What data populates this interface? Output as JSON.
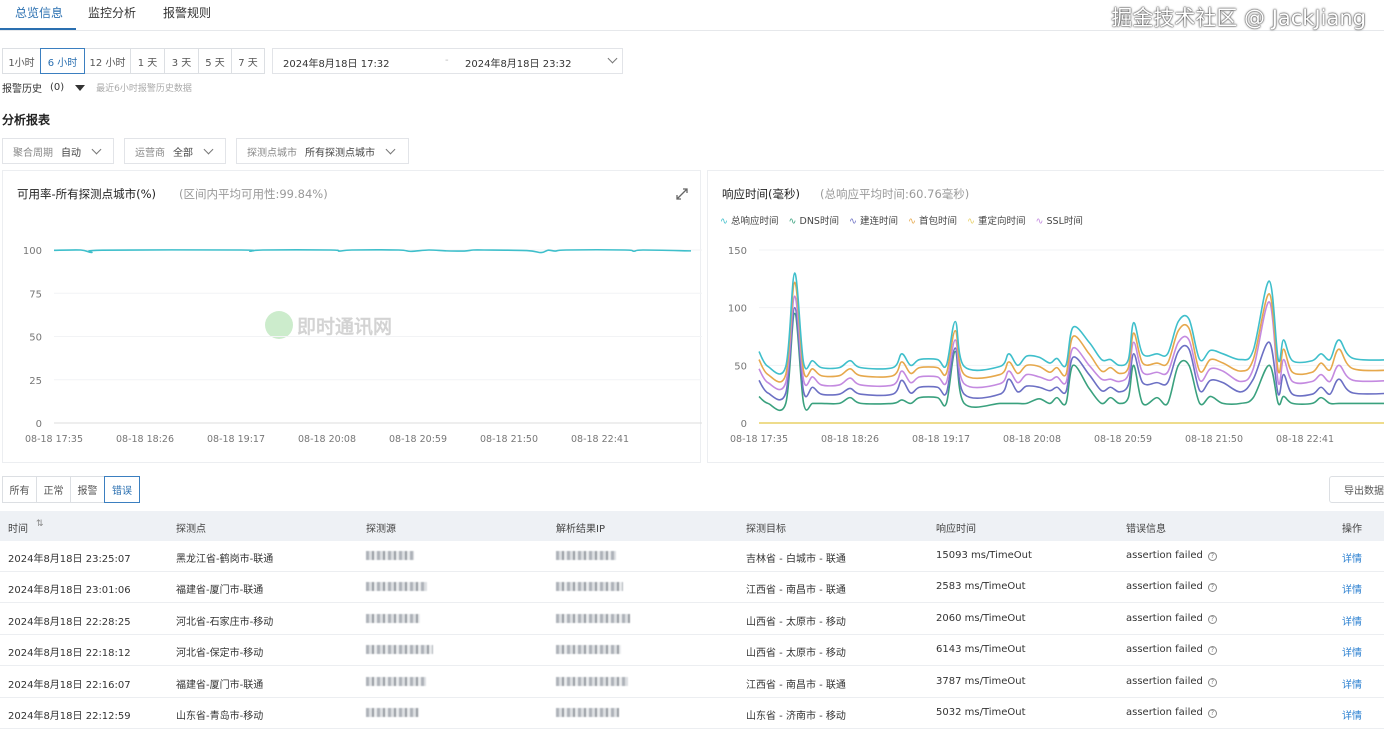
{
  "tabs": [
    {
      "label": "总览信息",
      "active": true
    },
    {
      "label": "监控分析"
    },
    {
      "label": "报警规则"
    }
  ],
  "time_ranges": [
    {
      "label": "1小时"
    },
    {
      "label": "6 小时",
      "selected": true
    },
    {
      "label": "12 小时"
    },
    {
      "label": "1 天"
    },
    {
      "label": "3 天"
    },
    {
      "label": "5 天"
    },
    {
      "label": "7 天"
    }
  ],
  "date_range": {
    "start": "2024年8月18日 17:32",
    "separator": "-",
    "end": "2024年8月18日 23:32"
  },
  "alert_history": {
    "label": "报警历史",
    "count": "(0)",
    "hint": "最近6小时报警历史数据"
  },
  "section_title": "分析报表",
  "filters": [
    {
      "label": "聚合周期",
      "value": "自动"
    },
    {
      "label": "运营商",
      "value": "全部"
    },
    {
      "label": "探测点城市",
      "value": "所有探测点城市"
    }
  ],
  "availability_chart": {
    "title": "可用率-所有探测点城市(%)",
    "subtitle": "(区间内平均可用性:99.84%)",
    "watermark": "即时通讯网",
    "chart_data": {
      "type": "line",
      "ylim": [
        0,
        100
      ],
      "yticks": [
        "0",
        "25",
        "50",
        "75",
        "100"
      ],
      "x_range": [
        "17:35",
        "23:32"
      ],
      "xticks": [
        "08-18 17:35",
        "08-18 18:26",
        "08-18 19:17",
        "08-18 20:08",
        "08-18 20:59",
        "08-18 21:50",
        "08-18 22:41"
      ],
      "color": "#3fbfcb",
      "x": [
        "17:35",
        "17:50",
        "17:56",
        "18:02",
        "19:20",
        "19:25",
        "19:32",
        "20:10",
        "20:15",
        "20:22",
        "20:48",
        "20:55",
        "21:05",
        "21:15",
        "21:25",
        "21:30",
        "21:36",
        "22:00",
        "22:08",
        "22:12",
        "22:16",
        "22:22",
        "22:55",
        "23:00",
        "23:05",
        "23:32"
      ],
      "values": [
        99.8,
        100,
        98.6,
        99.9,
        100,
        99.3,
        100,
        100,
        99.4,
        100,
        100,
        99.2,
        100,
        99.5,
        99.4,
        100,
        100,
        99.7,
        98.5,
        99.9,
        99.4,
        100,
        100,
        99.3,
        100,
        99.5
      ]
    }
  },
  "response_chart": {
    "title": "响应时间(毫秒)",
    "subtitle": "(总响应平均时间:60.76毫秒)",
    "chart_data": {
      "type": "line",
      "ylim": [
        0,
        150
      ],
      "yticks": [
        "0",
        "50",
        "100",
        "150"
      ],
      "x_range": [
        "17:35",
        "23:32"
      ],
      "xticks": [
        "08-18 17:35",
        "08-18 18:26",
        "08-18 19:17",
        "08-18 20:08",
        "08-18 20:59",
        "08-18 21:50",
        "08-18 22:41"
      ],
      "x": [
        "17:35",
        "17:40",
        "17:50",
        "17:55",
        "18:00",
        "18:05",
        "18:10",
        "18:20",
        "18:26",
        "18:32",
        "18:50",
        "18:55",
        "19:00",
        "19:05",
        "19:15",
        "19:20",
        "19:25",
        "19:30",
        "19:50",
        "19:55",
        "20:00",
        "20:05",
        "20:12",
        "20:18",
        "20:22",
        "20:27",
        "20:31",
        "20:40",
        "20:47",
        "20:52",
        "20:57",
        "21:02",
        "21:05",
        "21:10",
        "21:18",
        "21:24",
        "21:30",
        "21:36",
        "21:42",
        "21:48",
        "21:55",
        "22:05",
        "22:12",
        "22:21",
        "22:26",
        "22:29",
        "22:34",
        "22:45",
        "22:50",
        "22:55",
        "23:00",
        "23:08",
        "23:32"
      ],
      "series": [
        {
          "name": "总响应时间",
          "color": "#3fbfcb",
          "values": [
            62,
            49,
            49,
            130,
            52,
            54,
            48,
            48,
            54,
            48,
            48,
            60,
            50,
            55,
            55,
            50,
            88,
            49,
            49,
            60,
            50,
            58,
            57,
            52,
            56,
            50,
            83,
            70,
            55,
            55,
            50,
            55,
            87,
            60,
            60,
            60,
            88,
            90,
            55,
            63,
            60,
            55,
            63,
            123,
            55,
            72,
            54,
            54,
            60,
            55,
            72,
            56,
            55
          ]
        },
        {
          "name": "DNS时间",
          "color": "#3aa17e",
          "values": [
            23,
            17,
            17,
            95,
            17,
            17,
            17,
            17,
            22,
            17,
            17,
            20,
            17,
            22,
            22,
            17,
            62,
            17,
            17,
            17,
            17,
            17,
            21,
            17,
            22,
            17,
            50,
            30,
            17,
            22,
            17,
            22,
            50,
            17,
            22,
            17,
            50,
            50,
            17,
            23,
            17,
            17,
            22,
            50,
            17,
            23,
            17,
            17,
            22,
            17,
            17,
            17,
            17
          ]
        },
        {
          "name": "建连时间",
          "color": "#6c70c4",
          "values": [
            37,
            26,
            26,
            100,
            27,
            31,
            25,
            25,
            30,
            25,
            25,
            37,
            26,
            31,
            31,
            26,
            65,
            25,
            25,
            38,
            27,
            32,
            31,
            28,
            31,
            27,
            57,
            42,
            28,
            31,
            27,
            33,
            60,
            35,
            35,
            35,
            62,
            64,
            28,
            37,
            35,
            27,
            38,
            70,
            25,
            42,
            25,
            25,
            31,
            25,
            38,
            26,
            26
          ]
        },
        {
          "name": "首包时间",
          "color": "#e6a84c",
          "values": [
            55,
            42,
            42,
            122,
            45,
            47,
            41,
            41,
            47,
            41,
            41,
            53,
            43,
            48,
            48,
            43,
            80,
            42,
            42,
            53,
            43,
            50,
            49,
            44,
            48,
            42,
            75,
            60,
            45,
            48,
            43,
            48,
            78,
            52,
            52,
            52,
            80,
            82,
            45,
            55,
            52,
            45,
            55,
            112,
            45,
            64,
            44,
            44,
            52,
            46,
            64,
            47,
            46
          ]
        },
        {
          "name": "重定向时间",
          "color": "#e8d067",
          "values": [
            0,
            0,
            0,
            0,
            0,
            0,
            0,
            0,
            0,
            0,
            0,
            0,
            0,
            0,
            0,
            0,
            0,
            0,
            0,
            0,
            0,
            0,
            0,
            0,
            0,
            0,
            0,
            0,
            0,
            0,
            0,
            0,
            0,
            0,
            0,
            0,
            0,
            0,
            0,
            0,
            0,
            0,
            0,
            0,
            0,
            0,
            0,
            0,
            0,
            0,
            0,
            0,
            0
          ]
        },
        {
          "name": "SSL时间",
          "color": "#c48ae0",
          "values": [
            47,
            35,
            35,
            110,
            37,
            40,
            33,
            33,
            39,
            33,
            33,
            45,
            35,
            40,
            40,
            35,
            72,
            34,
            34,
            45,
            35,
            42,
            40,
            37,
            40,
            35,
            65,
            50,
            38,
            38,
            36,
            42,
            70,
            44,
            44,
            44,
            70,
            72,
            37,
            47,
            45,
            36,
            47,
            105,
            35,
            55,
            36,
            36,
            42,
            36,
            50,
            37,
            37
          ]
        }
      ]
    }
  },
  "status_filters": [
    {
      "label": "所有"
    },
    {
      "label": "正常"
    },
    {
      "label": "报警"
    },
    {
      "label": "错误",
      "selected": true
    }
  ],
  "export_label": "导出数据",
  "table": {
    "headers": [
      "时间",
      "探测点",
      "探测源",
      "解析结果IP",
      "探测目标",
      "响应时间",
      "错误信息",
      "操作"
    ],
    "rows": [
      {
        "time": "2024年8月18日 23:25:07",
        "probe": "黑龙江省-鹤岗市-联通",
        "target": "吉林省 - 白城市 - 联通",
        "resp": "15093 ms/TimeOut",
        "error": "assertion failed",
        "action": "详情"
      },
      {
        "time": "2024年8月18日 23:01:06",
        "probe": "福建省-厦门市-联通",
        "target": "江西省 - 南昌市 - 联通",
        "resp": "2583 ms/TimeOut",
        "error": "assertion failed",
        "action": "详情"
      },
      {
        "time": "2024年8月18日 22:28:25",
        "probe": "河北省-石家庄市-移动",
        "target": "山西省 - 太原市 - 移动",
        "resp": "2060 ms/TimeOut",
        "error": "assertion failed",
        "action": "详情"
      },
      {
        "time": "2024年8月18日 22:18:12",
        "probe": "河北省-保定市-移动",
        "target": "山西省 - 太原市 - 移动",
        "resp": "6143 ms/TimeOut",
        "error": "assertion failed",
        "action": "详情"
      },
      {
        "time": "2024年8月18日 22:16:07",
        "probe": "福建省-厦门市-联通",
        "target": "江西省 - 南昌市 - 联通",
        "resp": "3787 ms/TimeOut",
        "error": "assertion failed",
        "action": "详情"
      },
      {
        "time": "2024年8月18日 22:12:59",
        "probe": "山东省-青岛市-移动",
        "target": "山东省 - 济南市 - 移动",
        "resp": "5032 ms/TimeOut",
        "error": "assertion failed",
        "action": "详情"
      }
    ]
  },
  "watermark": "掘金技术社区 @ JackJiang"
}
